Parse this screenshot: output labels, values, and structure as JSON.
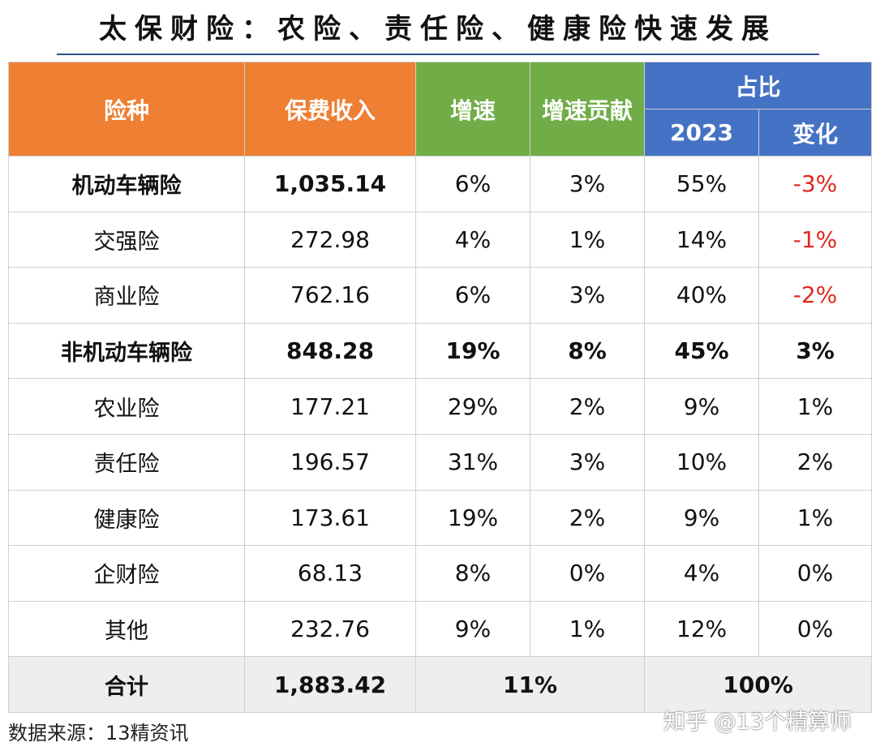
{
  "title": "太保财险：农险、责任险、健康险快速发展",
  "headers": {
    "type": "险种",
    "premium": "保费收入",
    "growth": "增速",
    "contribution": "增速贡献",
    "share": "占比",
    "share_2023": "2023",
    "share_change": "变化"
  },
  "rows": [
    {
      "name": "机动车辆险",
      "premium": "1,035.14",
      "growth": "6%",
      "contribution": "3%",
      "share": "55%",
      "change": "-3%"
    },
    {
      "name": "交强险",
      "premium": "272.98",
      "growth": "4%",
      "contribution": "1%",
      "share": "14%",
      "change": "-1%"
    },
    {
      "name": "商业险",
      "premium": "762.16",
      "growth": "6%",
      "contribution": "3%",
      "share": "40%",
      "change": "-2%"
    },
    {
      "name": "非机动车辆险",
      "premium": "848.28",
      "growth": "19%",
      "contribution": "8%",
      "share": "45%",
      "change": "3%"
    },
    {
      "name": "农业险",
      "premium": "177.21",
      "growth": "29%",
      "contribution": "2%",
      "share": "9%",
      "change": "1%"
    },
    {
      "name": "责任险",
      "premium": "196.57",
      "growth": "31%",
      "contribution": "3%",
      "share": "10%",
      "change": "2%"
    },
    {
      "name": "健康险",
      "premium": "173.61",
      "growth": "19%",
      "contribution": "2%",
      "share": "9%",
      "change": "1%"
    },
    {
      "name": "企财险",
      "premium": "68.13",
      "growth": "8%",
      "contribution": "0%",
      "share": "4%",
      "change": "0%"
    },
    {
      "name": "其他",
      "premium": "232.76",
      "growth": "9%",
      "contribution": "1%",
      "share": "12%",
      "change": "0%"
    }
  ],
  "total": {
    "name": "合计",
    "premium": "1,883.42",
    "growth": "11%",
    "share": "100%"
  },
  "source": "数据来源：13精资讯",
  "watermark_brand": "知乎 @13个精算师",
  "colors": {
    "orange": "#ee7f33",
    "green": "#70ad47",
    "blue": "#4472c4",
    "negative": "#e0281e",
    "rule": "#2e4f8f"
  }
}
